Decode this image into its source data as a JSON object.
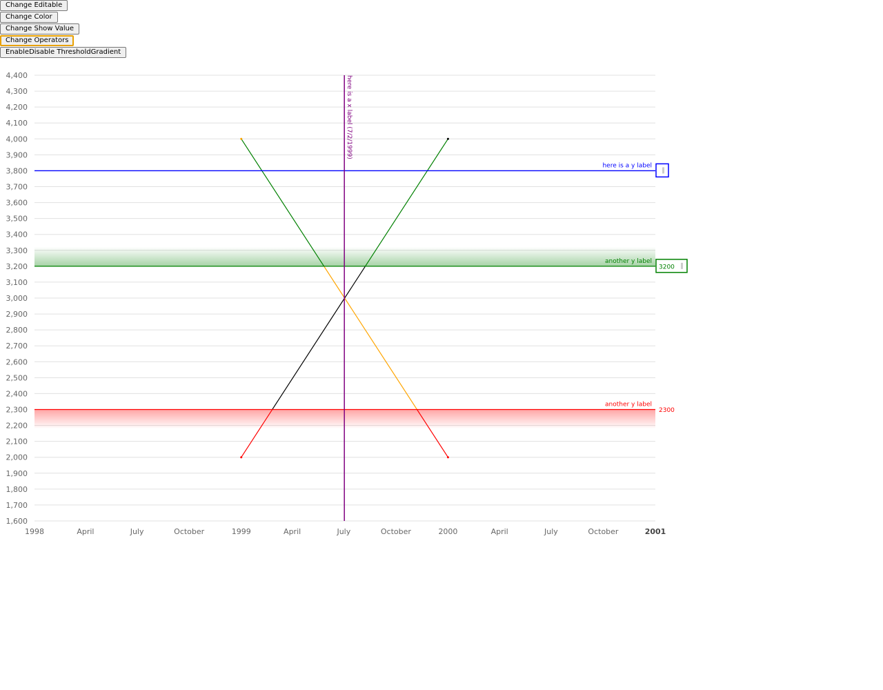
{
  "controls": {
    "buttons": [
      {
        "label": "Change Editable"
      },
      {
        "label": "Change Color"
      },
      {
        "label": "Change Show Value"
      },
      {
        "label": "Change Operators"
      },
      {
        "label": "EnableDisable ThresholdGradient"
      }
    ]
  },
  "chart_data": {
    "type": "line",
    "xlabel": "",
    "ylabel": "",
    "xlim": [
      "1998-01-01",
      "2001-01-01"
    ],
    "ylim": [
      1600,
      4400
    ],
    "y_ticks": [
      "1,600",
      "1,700",
      "1,800",
      "1,900",
      "2,000",
      "2,100",
      "2,200",
      "2,300",
      "2,400",
      "2,500",
      "2,600",
      "2,700",
      "2,800",
      "2,900",
      "3,000",
      "3,100",
      "3,200",
      "3,300",
      "3,400",
      "3,500",
      "3,600",
      "3,700",
      "3,800",
      "3,900",
      "4,000",
      "4,100",
      "4,200",
      "4,300",
      "4,400"
    ],
    "x_ticks": [
      {
        "date": "1998-01-01",
        "label": "1998",
        "bold": false
      },
      {
        "date": "1998-04-01",
        "label": "April",
        "bold": false
      },
      {
        "date": "1998-07-01",
        "label": "July",
        "bold": false
      },
      {
        "date": "1998-10-01",
        "label": "October",
        "bold": false
      },
      {
        "date": "1999-01-01",
        "label": "1999",
        "bold": false
      },
      {
        "date": "1999-04-01",
        "label": "April",
        "bold": false
      },
      {
        "date": "1999-07-01",
        "label": "July",
        "bold": false
      },
      {
        "date": "1999-10-01",
        "label": "October",
        "bold": false
      },
      {
        "date": "2000-01-01",
        "label": "2000",
        "bold": false
      },
      {
        "date": "2000-04-01",
        "label": "April",
        "bold": false
      },
      {
        "date": "2000-07-01",
        "label": "July",
        "bold": false
      },
      {
        "date": "2000-10-01",
        "label": "October",
        "bold": false
      },
      {
        "date": "2001-01-01",
        "label": "2001",
        "bold": true
      }
    ],
    "grid": {
      "y": true,
      "x": false
    },
    "series": [
      {
        "points": [
          {
            "x": "1999-01-01",
            "y": 2000
          },
          {
            "x": "2000-01-01",
            "y": 4000
          }
        ]
      },
      {
        "points": [
          {
            "x": "1999-01-01",
            "y": 4000
          },
          {
            "x": "2000-01-01",
            "y": 2000
          }
        ]
      }
    ],
    "series_colors": {
      "base": [
        "#000000",
        "#ffa500"
      ],
      "above_3200": "#008000",
      "below_2300": "#ff0000"
    },
    "x_threshold": {
      "date": "1999-07-02",
      "label": "here is a x label (7/2/1999)",
      "color": "#800080"
    },
    "y_thresholds": [
      {
        "value": 3800,
        "label": "here is a y label",
        "color": "#0000ff",
        "gradient": "none",
        "value_box": "",
        "box_outline": true
      },
      {
        "value": 3200,
        "label": "another y label",
        "color": "#008000",
        "gradient": "above",
        "value_box": "3200",
        "box_outline": true
      },
      {
        "value": 2300,
        "label": "another y label",
        "color": "#ff0000",
        "gradient": "below",
        "value_box": "2300",
        "box_outline": false
      }
    ]
  }
}
